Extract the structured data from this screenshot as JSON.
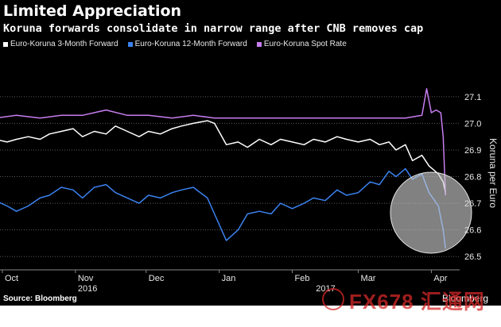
{
  "title": "Limited Appreciation",
  "subtitle": "Koruna forwards consolidate in narrow range after CNB removes cap",
  "source": "Source: Bloomberg",
  "brand": "Bloomberg",
  "watermark": "FX678 汇通网",
  "colors": {
    "background": "#000000",
    "three_month": "#ffffff",
    "twelve_month": "#3b82f0",
    "spot": "#c77df0",
    "highlight_circle": "#d0d0d0"
  },
  "chart_data": {
    "type": "line",
    "ylabel": "Koruna per Euro",
    "ylim": [
      26.45,
      27.18
    ],
    "yticks": [
      26.5,
      26.6,
      26.7,
      26.8,
      26.9,
      27.0,
      27.1
    ],
    "ytick_labels": [
      "26.5",
      "26.6",
      "26.7",
      "26.8",
      "26.9",
      "27.0",
      "27.1"
    ],
    "xlim": [
      "2016-09-30",
      "2017-04-13"
    ],
    "xticks": [
      {
        "date": "2016-10-01",
        "label": "Oct"
      },
      {
        "date": "2016-11-01",
        "label": "Nov"
      },
      {
        "date": "2016-12-01",
        "label": "Dec"
      },
      {
        "date": "2017-01-01",
        "label": "Jan"
      },
      {
        "date": "2017-02-01",
        "label": "Feb"
      },
      {
        "date": "2017-03-01",
        "label": "Mar"
      },
      {
        "date": "2017-04-01",
        "label": "Apr"
      }
    ],
    "year_labels": [
      {
        "date": "2016-11-01",
        "label": "2016"
      },
      {
        "date": "2017-02-10",
        "label": "2017"
      }
    ],
    "grid": true,
    "legend_position": "top-left",
    "series": [
      {
        "name": "Euro-Koruna 3-Month Forward",
        "x": [
          "2016-09-28",
          "2016-10-03",
          "2016-10-07",
          "2016-10-12",
          "2016-10-17",
          "2016-10-21",
          "2016-10-26",
          "2016-10-31",
          "2016-11-04",
          "2016-11-09",
          "2016-11-14",
          "2016-11-18",
          "2016-11-23",
          "2016-11-28",
          "2016-12-02",
          "2016-12-07",
          "2016-12-12",
          "2016-12-16",
          "2016-12-21",
          "2016-12-27",
          "2016-12-30",
          "2017-01-04",
          "2017-01-09",
          "2017-01-13",
          "2017-01-18",
          "2017-01-23",
          "2017-01-27",
          "2017-02-01",
          "2017-02-06",
          "2017-02-10",
          "2017-02-15",
          "2017-02-20",
          "2017-02-24",
          "2017-03-01",
          "2017-03-06",
          "2017-03-10",
          "2017-03-14",
          "2017-03-17",
          "2017-03-21",
          "2017-03-24",
          "2017-03-28",
          "2017-03-31",
          "2017-04-04",
          "2017-04-06",
          "2017-04-07"
        ],
        "y": [
          26.94,
          26.93,
          26.94,
          26.95,
          26.94,
          26.96,
          26.97,
          26.98,
          26.95,
          26.97,
          26.96,
          26.99,
          26.97,
          26.95,
          26.97,
          26.96,
          26.98,
          26.99,
          27.0,
          27.01,
          27.0,
          26.92,
          26.93,
          26.91,
          26.94,
          26.92,
          26.94,
          26.93,
          26.92,
          26.94,
          26.93,
          26.95,
          26.94,
          26.93,
          26.94,
          26.92,
          26.93,
          26.9,
          26.92,
          26.86,
          26.88,
          26.84,
          26.81,
          26.78,
          26.74
        ]
      },
      {
        "name": "Euro-Koruna 12-Month Forward",
        "x": [
          "2016-09-28",
          "2016-10-03",
          "2016-10-07",
          "2016-10-12",
          "2016-10-17",
          "2016-10-21",
          "2016-10-26",
          "2016-10-31",
          "2016-11-04",
          "2016-11-09",
          "2016-11-14",
          "2016-11-18",
          "2016-11-23",
          "2016-11-28",
          "2016-12-02",
          "2016-12-07",
          "2016-12-12",
          "2016-12-16",
          "2016-12-21",
          "2016-12-27",
          "2016-12-30",
          "2017-01-04",
          "2017-01-09",
          "2017-01-13",
          "2017-01-18",
          "2017-01-23",
          "2017-01-27",
          "2017-02-01",
          "2017-02-06",
          "2017-02-10",
          "2017-02-15",
          "2017-02-20",
          "2017-02-24",
          "2017-03-01",
          "2017-03-06",
          "2017-03-10",
          "2017-03-14",
          "2017-03-17",
          "2017-03-21",
          "2017-03-24",
          "2017-03-28",
          "2017-03-31",
          "2017-04-04",
          "2017-04-06",
          "2017-04-07"
        ],
        "y": [
          26.71,
          26.69,
          26.67,
          26.69,
          26.72,
          26.73,
          26.76,
          26.75,
          26.72,
          26.76,
          26.77,
          26.74,
          26.72,
          26.7,
          26.73,
          26.72,
          26.74,
          26.75,
          26.76,
          26.72,
          26.66,
          26.56,
          26.6,
          26.66,
          26.67,
          26.66,
          26.7,
          26.68,
          26.7,
          26.72,
          26.71,
          26.75,
          26.73,
          26.74,
          26.78,
          26.77,
          26.82,
          26.8,
          26.83,
          26.79,
          26.81,
          26.74,
          26.69,
          26.6,
          26.53
        ]
      },
      {
        "name": "Euro-Koruna Spot Rate",
        "x": [
          "2016-09-28",
          "2016-10-07",
          "2016-10-17",
          "2016-10-26",
          "2016-11-04",
          "2016-11-14",
          "2016-11-23",
          "2016-12-02",
          "2016-12-12",
          "2016-12-21",
          "2016-12-30",
          "2017-01-09",
          "2017-01-18",
          "2017-01-27",
          "2017-02-06",
          "2017-02-15",
          "2017-02-24",
          "2017-03-06",
          "2017-03-14",
          "2017-03-21",
          "2017-03-28",
          "2017-03-30",
          "2017-04-01",
          "2017-04-03",
          "2017-04-05",
          "2017-04-06",
          "2017-04-07"
        ],
        "y": [
          27.02,
          27.03,
          27.02,
          27.03,
          27.03,
          27.05,
          27.03,
          27.03,
          27.02,
          27.03,
          27.02,
          27.02,
          27.02,
          27.02,
          27.02,
          27.02,
          27.02,
          27.02,
          27.02,
          27.02,
          27.03,
          27.13,
          27.04,
          27.05,
          27.04,
          26.95,
          26.73
        ]
      }
    ],
    "annotation": "highlight circle around early-April drop"
  }
}
